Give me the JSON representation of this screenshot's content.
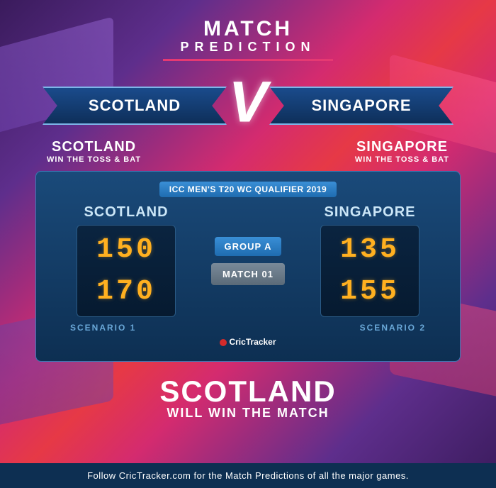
{
  "title": {
    "main": "MATCH",
    "sub": "PREDICTION",
    "title_fontsize": 30,
    "sub_fontsize": 18,
    "underline_color": "#e63972"
  },
  "teams": {
    "left": "SCOTLAND",
    "right": "SINGAPORE",
    "vs": "V",
    "ribbon_bg": "#1a4b8c",
    "ribbon_border": "#7db5e8",
    "font_size": 22
  },
  "toss": {
    "left": {
      "team": "SCOTLAND",
      "sub": "WIN THE TOSS & BAT"
    },
    "right": {
      "team": "SINGAPORE",
      "sub": "WIN THE TOSS & BAT"
    }
  },
  "event": {
    "label": "ICC MEN'S T20 WC QUALIFIER 2019",
    "group": "GROUP A",
    "match": "MATCH 01"
  },
  "scenarios": {
    "left": {
      "team": "SCOTLAND",
      "scores": [
        "150",
        "170"
      ],
      "label": "SCENARIO 1"
    },
    "right": {
      "team": "SINGAPORE",
      "scores": [
        "135",
        "155"
      ],
      "label": "SCENARIO 2"
    },
    "score_color": "#ffb020",
    "box_bg": "#0a2440",
    "board_bg_top": "#1a4a7a",
    "board_bg_bot": "#0d2f52"
  },
  "tracker": "CricTracker",
  "verdict": {
    "team": "SCOTLAND",
    "sub": "WILL WIN THE MATCH",
    "team_fontsize": 42
  },
  "footer": "Follow CricTracker.com for the Match Predictions of all the major games.",
  "colors": {
    "bg_grad": [
      "#3a1b5c",
      "#5e2e8c",
      "#d42b6f",
      "#e63946"
    ],
    "footer_bg": "#0d2f52"
  }
}
